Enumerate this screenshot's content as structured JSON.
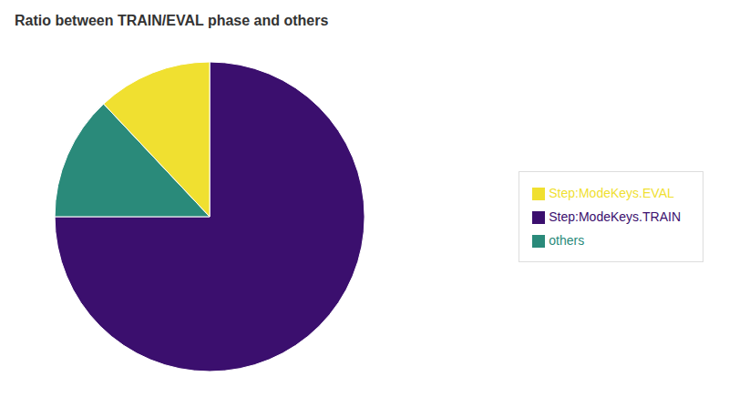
{
  "chart_data": {
    "type": "pie",
    "title": "Ratio between TRAIN/EVAL phase and others",
    "categories": [
      "Step:ModeKeys.TRAIN",
      "others",
      "Step:ModeKeys.EVAL"
    ],
    "values": [
      75,
      13,
      12
    ],
    "colors": [
      "#3b0f6e",
      "#2a8a7a",
      "#f0e030"
    ],
    "legend": "right"
  }
}
